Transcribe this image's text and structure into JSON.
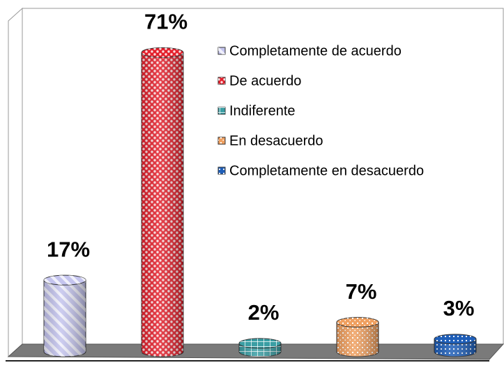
{
  "chart_data": {
    "type": "cylinder-bar",
    "series": [
      {
        "name": "Completamente de acuerdo",
        "color": "#c4c4ee",
        "values": [
          17
        ],
        "value_labels": [
          "17%"
        ]
      },
      {
        "name": "De acuerdo",
        "color": "#e4202c",
        "values": [
          71
        ],
        "value_labels": [
          "71%"
        ]
      },
      {
        "name": "Indiferente",
        "color": "#3a9ea4",
        "values": [
          2
        ],
        "value_labels": [
          "2%"
        ]
      },
      {
        "name": "En desacuerdo",
        "color": "#f0a060",
        "values": [
          7
        ],
        "value_labels": [
          "7%"
        ]
      },
      {
        "name": "Completamente en desacuerdo",
        "color": "#1e5eb8",
        "values": [
          3
        ],
        "value_labels": [
          "3%"
        ]
      }
    ],
    "legend": "top-right"
  }
}
